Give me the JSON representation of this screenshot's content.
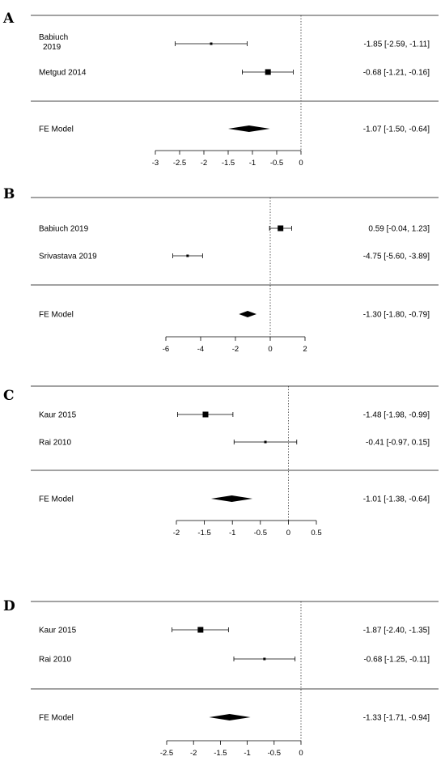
{
  "chart_data": [
    {
      "type": "forest",
      "panel": "A",
      "studies": [
        {
          "label_lines": [
            "Babiuch",
            "2019"
          ],
          "estimate": -1.85,
          "lower": -2.59,
          "upper": -1.11,
          "ci_text": "-1.85 [-2.59, -1.11]"
        },
        {
          "label_lines": [
            "Metgud 2014"
          ],
          "estimate": -0.68,
          "lower": -1.21,
          "upper": -0.16,
          "ci_text": "-0.68 [-1.21, -0.16]"
        }
      ],
      "summary": {
        "label": "FE Model",
        "estimate": -1.07,
        "lower": -1.5,
        "upper": -0.64,
        "ci_text": "-1.07 [-1.50, -0.64]"
      },
      "x_ticks": [
        -3,
        -2.5,
        -2,
        -1.5,
        -1,
        -0.5,
        0
      ],
      "x_tick_labels": [
        "-3",
        "-2.5",
        "-2",
        "-1.5",
        "-1",
        "-0.5",
        "0"
      ],
      "xlim": [
        -3,
        0
      ],
      "reference_line": 0
    },
    {
      "type": "forest",
      "panel": "B",
      "studies": [
        {
          "label_lines": [
            "Babiuch 2019"
          ],
          "estimate": 0.59,
          "lower": -0.04,
          "upper": 1.23,
          "ci_text": "0.59 [-0.04,  1.23]"
        },
        {
          "label_lines": [
            "Srivastava 2019"
          ],
          "estimate": -4.75,
          "lower": -5.6,
          "upper": -3.89,
          "ci_text": "-4.75 [-5.60, -3.89]"
        }
      ],
      "summary": {
        "label": "FE Model",
        "estimate": -1.3,
        "lower": -1.8,
        "upper": -0.79,
        "ci_text": "-1.30 [-1.80, -0.79]"
      },
      "x_ticks": [
        -6,
        -4,
        -2,
        0,
        2
      ],
      "x_tick_labels": [
        "-6",
        "-4",
        "-2",
        "0",
        "2"
      ],
      "xlim": [
        -6,
        2
      ],
      "reference_line": 0
    },
    {
      "type": "forest",
      "panel": "C",
      "studies": [
        {
          "label_lines": [
            "Kaur 2015"
          ],
          "estimate": -1.48,
          "lower": -1.98,
          "upper": -0.99,
          "ci_text": "-1.48 [-1.98, -0.99]"
        },
        {
          "label_lines": [
            "Rai 2010"
          ],
          "estimate": -0.41,
          "lower": -0.97,
          "upper": 0.15,
          "ci_text": "-0.41 [-0.97,  0.15]"
        }
      ],
      "summary": {
        "label": "FE Model",
        "estimate": -1.01,
        "lower": -1.38,
        "upper": -0.64,
        "ci_text": "-1.01 [-1.38, -0.64]"
      },
      "x_ticks": [
        -2,
        -1.5,
        -1,
        -0.5,
        0,
        0.5
      ],
      "x_tick_labels": [
        "-2",
        "-1.5",
        "-1",
        "-0.5",
        "0",
        "0.5"
      ],
      "xlim": [
        -2,
        0.5
      ],
      "reference_line": 0
    },
    {
      "type": "forest",
      "panel": "D",
      "studies": [
        {
          "label_lines": [
            "Kaur 2015"
          ],
          "estimate": -1.87,
          "lower": -2.4,
          "upper": -1.35,
          "ci_text": "-1.87 [-2.40, -1.35]"
        },
        {
          "label_lines": [
            "Rai 2010"
          ],
          "estimate": -0.68,
          "lower": -1.25,
          "upper": -0.11,
          "ci_text": "-0.68 [-1.25, -0.11]"
        }
      ],
      "summary": {
        "label": "FE Model",
        "estimate": -1.33,
        "lower": -1.71,
        "upper": -0.94,
        "ci_text": "-1.33 [-1.71, -0.94]"
      },
      "x_ticks": [
        -2.5,
        -2,
        -1.5,
        -1,
        -0.5,
        0
      ],
      "x_tick_labels": [
        "-2.5",
        "-2",
        "-1.5",
        "-1",
        "-0.5",
        "0"
      ],
      "xlim": [
        -2.5,
        0
      ],
      "reference_line": 0
    }
  ]
}
